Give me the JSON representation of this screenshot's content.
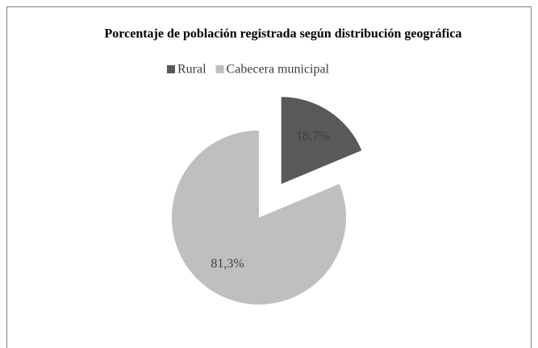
{
  "chart_data": {
    "type": "pie",
    "title": "Porcentaje de población registrada según distribución geográfica",
    "categories": [
      "Rural",
      "Cabecera municipal"
    ],
    "values": [
      18.7,
      81.3
    ],
    "value_labels": [
      "18,7%",
      "81,3%"
    ],
    "colors": [
      "#595959",
      "#bfbfbf"
    ],
    "legend": "top"
  }
}
